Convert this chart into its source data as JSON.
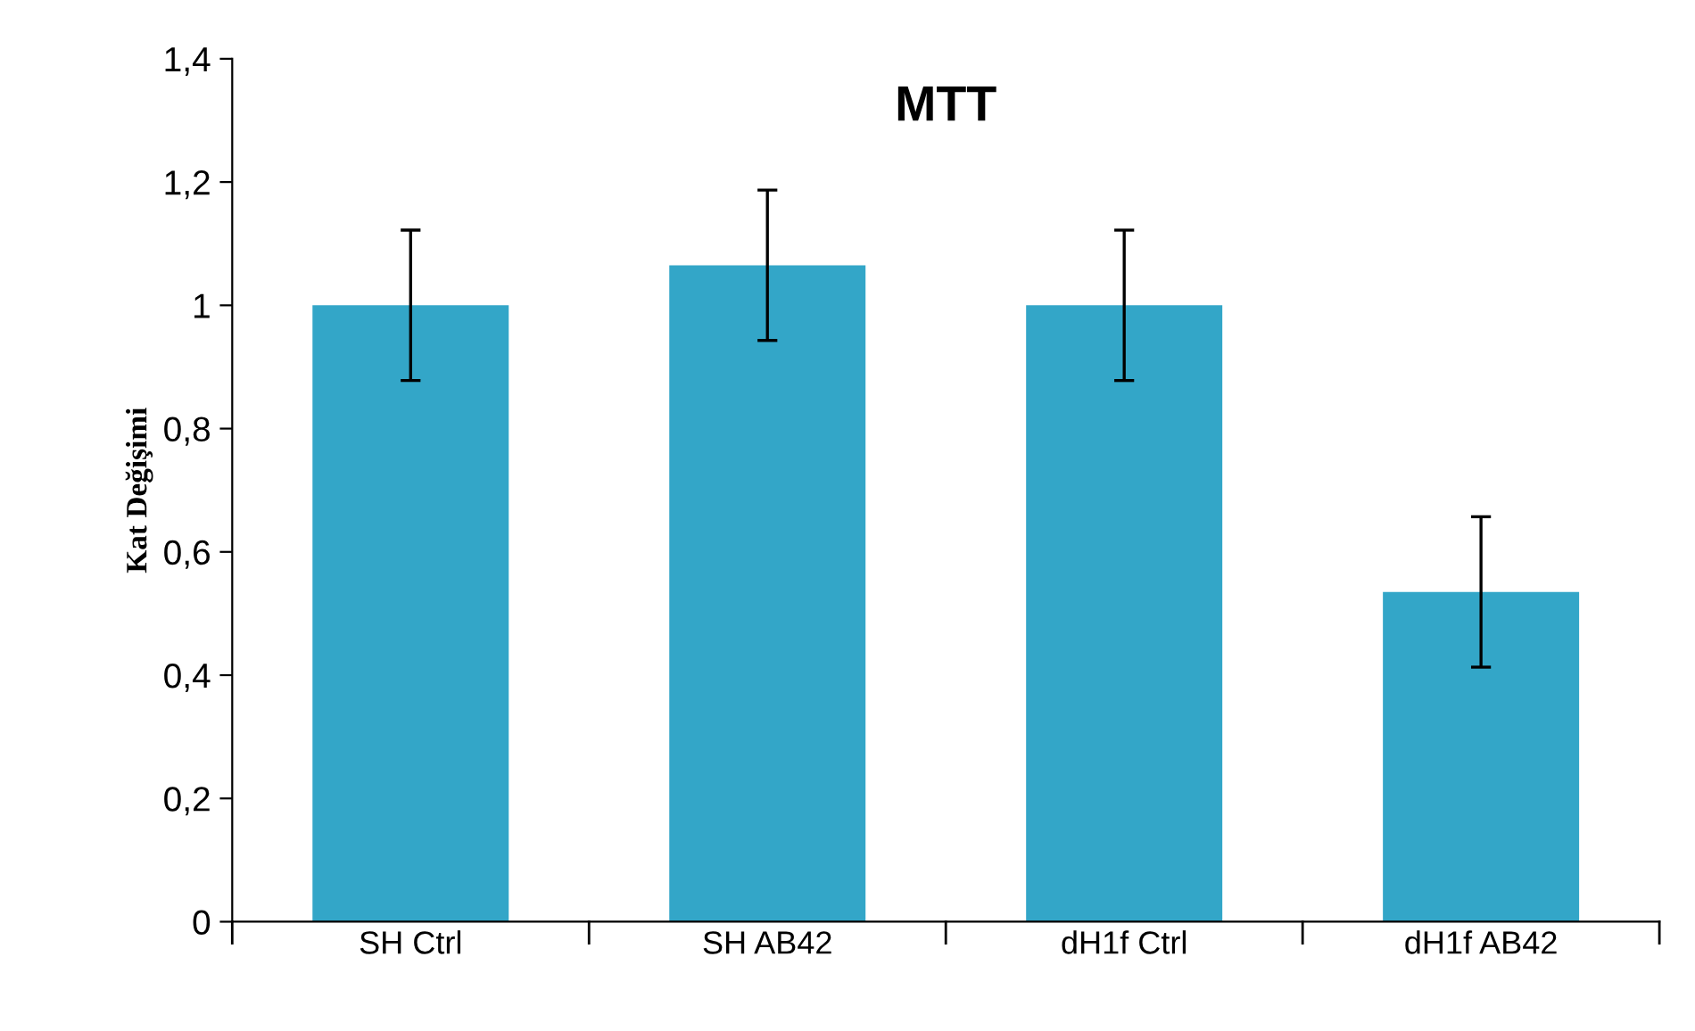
{
  "chart_data": {
    "type": "bar",
    "title": "MTT",
    "ylabel": "Kat Değişimi",
    "categories": [
      "SH Ctrl",
      "SH AB42",
      "dH1f Ctrl",
      "dH1f AB42"
    ],
    "values": [
      1.0,
      1.065,
      1.0,
      0.535
    ],
    "errors": [
      0.122,
      0.122,
      0.122,
      0.122
    ],
    "color": "#33a6c8",
    "ylim": [
      0,
      1.4
    ],
    "yticks": [
      0,
      {
        "value": 0.2,
        "label": "0,2"
      },
      {
        "value": 0.4,
        "label": "0,4"
      },
      {
        "value": 0.6,
        "label": "0,6"
      },
      {
        "value": 0.8,
        "label": "0,8"
      },
      1,
      {
        "value": 1.2,
        "label": "1,2"
      },
      {
        "value": 1.4,
        "label": "1,4"
      }
    ],
    "grid": false,
    "legend": false
  }
}
